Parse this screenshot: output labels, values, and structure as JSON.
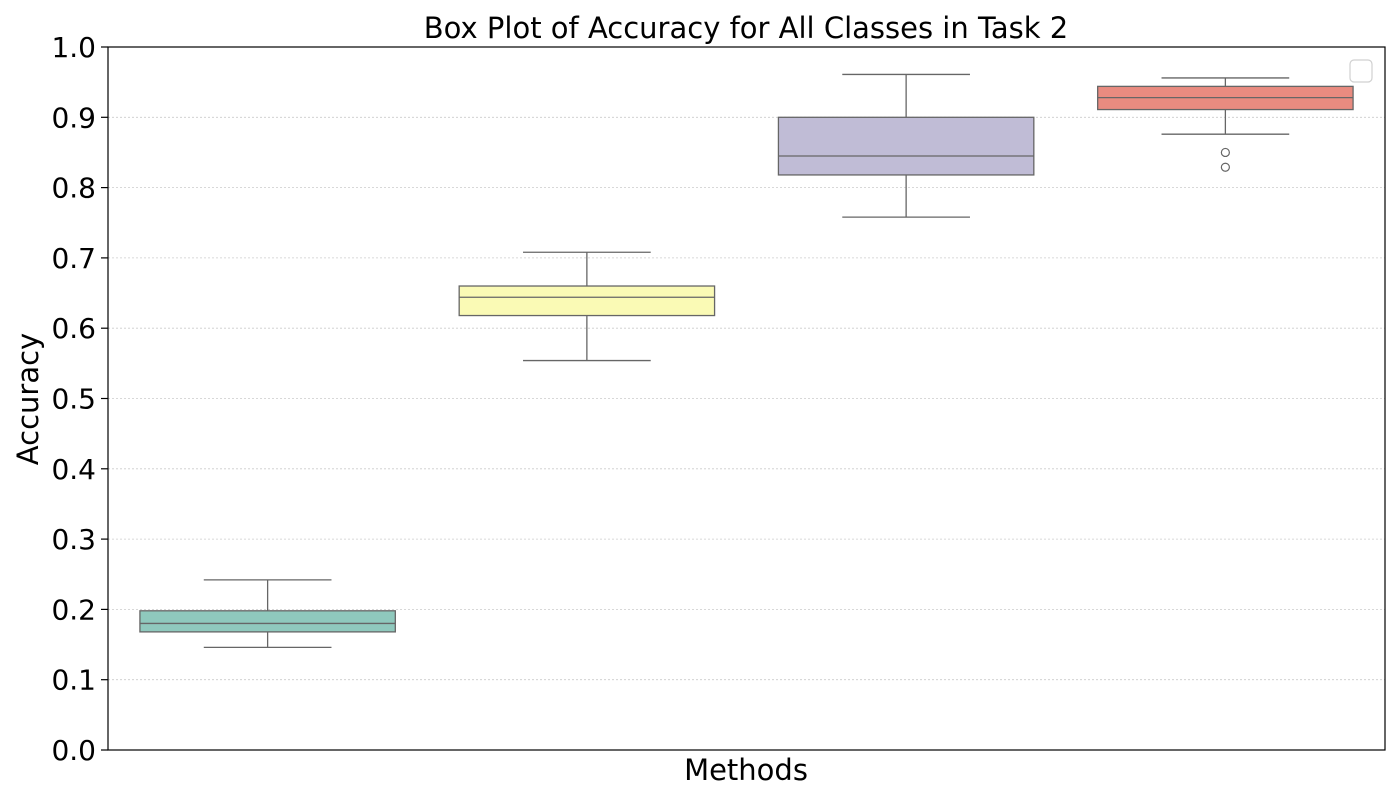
{
  "chart_data": {
    "type": "box",
    "title": "Box Plot of Accuracy for All Classes in Task 2",
    "xlabel": "Methods",
    "ylabel": "Accuracy",
    "ylim": [
      0.0,
      1.0
    ],
    "yticks": [
      "0.0",
      "0.1",
      "0.2",
      "0.3",
      "0.4",
      "0.5",
      "0.6",
      "0.7",
      "0.8",
      "0.9",
      "1.0"
    ],
    "grid": "horizontal-dotted",
    "legend": "top-right (empty)",
    "boxes": [
      {
        "color": "#8fc9bd",
        "whisker_low": 0.146,
        "q1": 0.168,
        "median": 0.18,
        "q3": 0.198,
        "whisker_high": 0.242,
        "outliers": []
      },
      {
        "color": "#fafab5",
        "whisker_low": 0.554,
        "q1": 0.618,
        "median": 0.644,
        "q3": 0.66,
        "whisker_high": 0.708,
        "outliers": []
      },
      {
        "color": "#c0bcd6",
        "whisker_low": 0.758,
        "q1": 0.818,
        "median": 0.845,
        "q3": 0.9,
        "whisker_high": 0.961,
        "outliers": []
      },
      {
        "color": "#e98b80",
        "whisker_low": 0.876,
        "q1": 0.911,
        "median": 0.928,
        "q3": 0.944,
        "whisker_high": 0.956,
        "outliers": [
          0.85,
          0.829
        ]
      }
    ]
  }
}
